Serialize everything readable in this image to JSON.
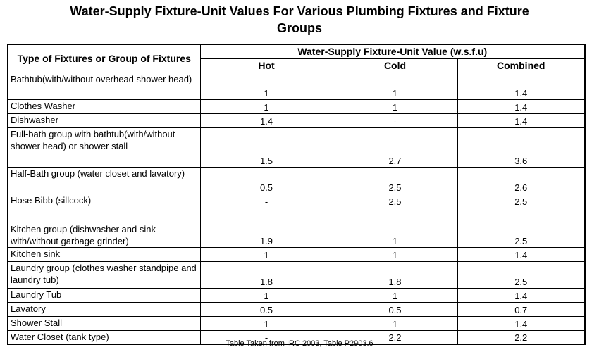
{
  "title": {
    "line1": "Water-Supply Fixture-Unit Values For Various Plumbing Fixtures and Fixture",
    "line2": "Groups"
  },
  "table": {
    "header": {
      "type_col": "Type of Fixtures or Group of Fixtures",
      "group": "Water-Supply Fixture-Unit Value (w.s.f.u)",
      "hot": "Hot",
      "cold": "Cold",
      "combined": "Combined"
    },
    "rows": [
      {
        "type": "Bathtub(with/without overhead shower head)",
        "hot": "1",
        "cold": "1",
        "combined": "1.4"
      },
      {
        "type": "Clothes Washer",
        "hot": "1",
        "cold": "1",
        "combined": "1.4"
      },
      {
        "type": "Dishwasher",
        "hot": "1.4",
        "cold": "-",
        "combined": "1.4"
      },
      {
        "type": "Full-bath group with bathtub(with/without shower head) or shower stall",
        "hot": "1.5",
        "cold": "2.7",
        "combined": "3.6"
      },
      {
        "type": "Half-Bath group (water closet and lavatory)",
        "hot": "0.5",
        "cold": "2.5",
        "combined": "2.6"
      },
      {
        "type": "Hose Bibb (sillcock)",
        "hot": "-",
        "cold": "2.5",
        "combined": "2.5"
      },
      {
        "type": "Kitchen group (dishwasher and sink with/without garbage grinder)",
        "hot": "1.9",
        "cold": "1",
        "combined": "2.5"
      },
      {
        "type": "Kitchen sink",
        "hot": "1",
        "cold": "1",
        "combined": "1.4"
      },
      {
        "type": "Laundry group (clothes washer standpipe and laundry tub)",
        "hot": "1.8",
        "cold": "1.8",
        "combined": "2.5"
      },
      {
        "type": "Laundry Tub",
        "hot": "1",
        "cold": "1",
        "combined": "1.4"
      },
      {
        "type": "Lavatory",
        "hot": "0.5",
        "cold": "0.5",
        "combined": "0.7"
      },
      {
        "type": "Shower Stall",
        "hot": "1",
        "cold": "1",
        "combined": "1.4"
      },
      {
        "type": "Water Closet (tank type)",
        "hot": "-",
        "cold": "2.2",
        "combined": "2.2"
      }
    ]
  },
  "caption": "Table Taken from IRC 2003, Table P2903.6"
}
